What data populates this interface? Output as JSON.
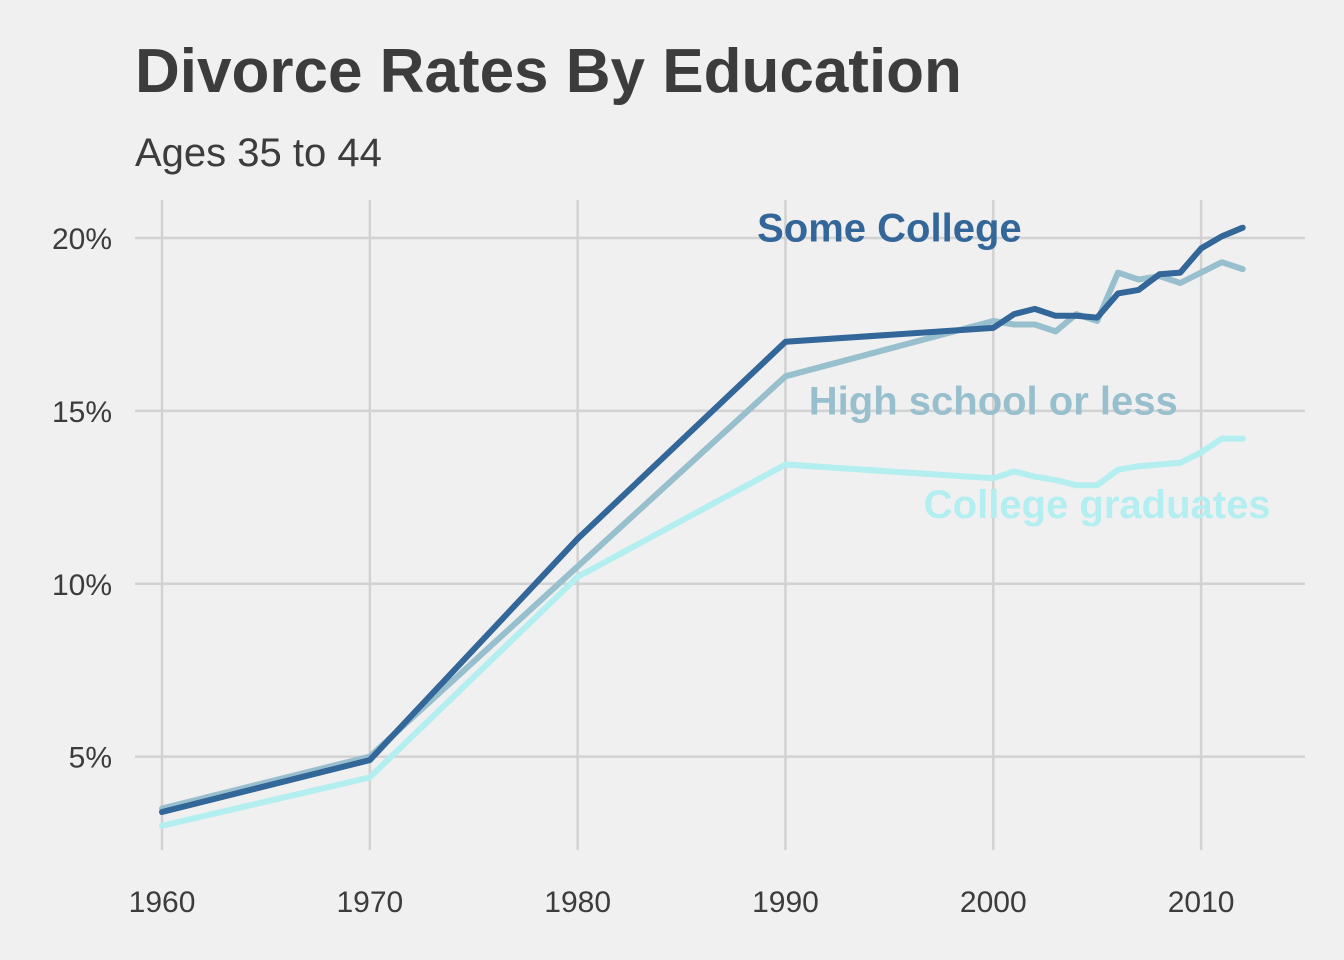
{
  "chart_data": {
    "type": "line",
    "title": "Divorce Rates By Education",
    "subtitle": "Ages 35 to 44",
    "xlabel": "",
    "ylabel": "",
    "xlim": [
      1958.7,
      2015
    ],
    "ylim": [
      2.3,
      21.1
    ],
    "x_ticks": [
      1960,
      1970,
      1980,
      1990,
      2000,
      2010
    ],
    "y_ticks": [
      5,
      10,
      15,
      20
    ],
    "y_tick_labels": [
      "5%",
      "10%",
      "15%",
      "20%"
    ],
    "grid": true,
    "legend": "direct labels",
    "series": [
      {
        "name": "High school or less",
        "color": "#97bfcd",
        "x": [
          1960,
          1970,
          1980,
          1990,
          2000,
          2001,
          2002,
          2003,
          2004,
          2005,
          2006,
          2007,
          2008,
          2009,
          2010,
          2011,
          2012
        ],
        "y": [
          3.5,
          5.0,
          10.5,
          16.0,
          17.6,
          17.5,
          17.5,
          17.3,
          17.8,
          17.6,
          19.0,
          18.8,
          18.9,
          18.7,
          19.0,
          19.3,
          19.1
        ]
      },
      {
        "name": "Some College",
        "color": "#336699",
        "x": [
          1960,
          1970,
          1980,
          1990,
          2000,
          2001,
          2002,
          2003,
          2004,
          2005,
          2006,
          2007,
          2008,
          2009,
          2010,
          2011,
          2012
        ],
        "y": [
          3.4,
          4.9,
          11.3,
          17.0,
          17.4,
          17.8,
          17.95,
          17.75,
          17.75,
          17.7,
          18.4,
          18.5,
          18.95,
          19.0,
          19.7,
          20.05,
          20.3
        ]
      },
      {
        "name": "College graduates",
        "color": "#b3eef0",
        "x": [
          1960,
          1970,
          1980,
          1990,
          2000,
          2001,
          2002,
          2003,
          2004,
          2005,
          2006,
          2007,
          2008,
          2009,
          2010,
          2011,
          2012
        ],
        "y": [
          3.0,
          4.4,
          10.2,
          13.45,
          13.05,
          13.25,
          13.1,
          13.0,
          12.85,
          12.85,
          13.3,
          13.4,
          13.45,
          13.5,
          13.8,
          14.2,
          14.2
        ]
      }
    ],
    "labels": [
      {
        "text": "Some College",
        "x": 1995,
        "y": 19.9,
        "color": "#336699",
        "anchor": "middle"
      },
      {
        "text": "High school or less",
        "x": 2000,
        "y": 14.9,
        "color": "#97bfcd",
        "anchor": "middle"
      },
      {
        "text": "College graduates",
        "x": 2005,
        "y": 11.9,
        "color": "#b3eef0",
        "anchor": "middle"
      }
    ]
  }
}
